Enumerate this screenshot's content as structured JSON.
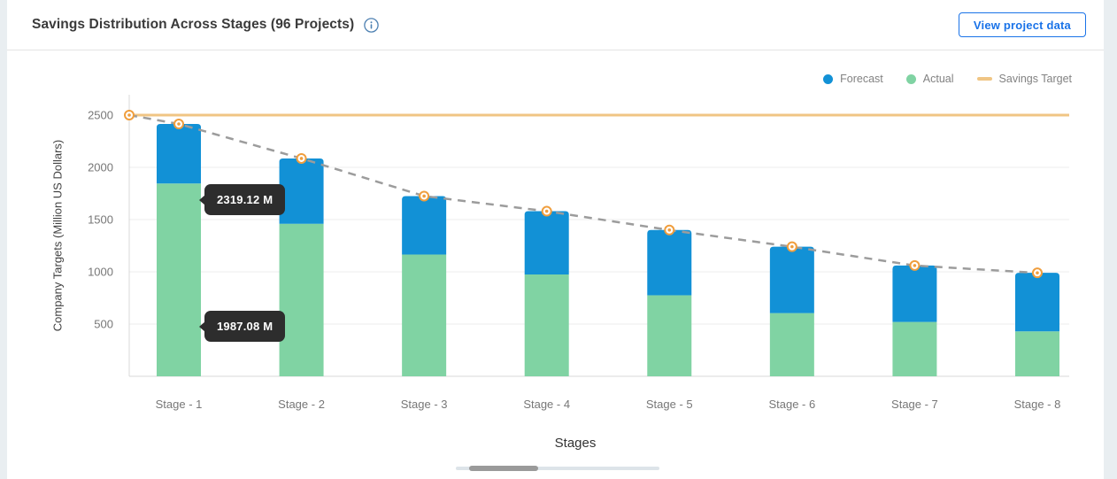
{
  "header": {
    "button_label": "View project data"
  },
  "legend": {
    "items": [
      {
        "label": "Forecast",
        "color": "#1291d6",
        "shape": "dot"
      },
      {
        "label": "Actual",
        "color": "#80d3a3",
        "shape": "dot"
      },
      {
        "label": "Savings Target",
        "color": "#f0c584",
        "shape": "dash"
      }
    ]
  },
  "tooltips": [
    {
      "text": "2319.12 M"
    },
    {
      "text": "1987.08 M"
    }
  ],
  "chart_data": {
    "type": "bar",
    "variant": "stacked bars with horizontal target line and dashed total trend line",
    "title": "Savings Distribution Across Stages (96 Projects)",
    "xlabel": "Stages",
    "ylabel": "Company Targets (Million US Dollars)",
    "categories": [
      "Stage - 1",
      "Stage - 2",
      "Stage - 3",
      "Stage - 4",
      "Stage - 5",
      "Stage - 6",
      "Stage - 7",
      "Stage - 8"
    ],
    "yticks": [
      500,
      1000,
      1500,
      2000,
      2500
    ],
    "ylim": [
      0,
      2695
    ],
    "grid": "horizontal",
    "legend_position": "top-right",
    "series": [
      {
        "name": "Actual",
        "type": "bar",
        "stack": "base",
        "color": "#80d3a3",
        "values": [
          1845,
          1460,
          1165,
          975,
          775,
          605,
          520,
          430
        ]
      },
      {
        "name": "Forecast",
        "type": "bar",
        "stack": "top",
        "color": "#1291d6",
        "values": [
          570,
          625,
          560,
          605,
          625,
          635,
          540,
          560
        ]
      },
      {
        "name": "Savings Target",
        "type": "line",
        "color": "#f0c584",
        "values": [
          2500,
          2500,
          2500,
          2500,
          2500,
          2500,
          2500,
          2500
        ]
      },
      {
        "name": "Stacked Total Trend",
        "type": "dashed_line_with_markers",
        "color": "#9c9c9c",
        "marker_color": "#f09e3d",
        "axis_start_value": 2500,
        "values": [
          2415,
          2085,
          1725,
          1580,
          1400,
          1240,
          1060,
          990
        ]
      }
    ],
    "annotations": [
      {
        "text": "2319.12 M",
        "near": "Stage - 1"
      },
      {
        "text": "1987.08 M",
        "near": "Stage - 1"
      }
    ]
  }
}
